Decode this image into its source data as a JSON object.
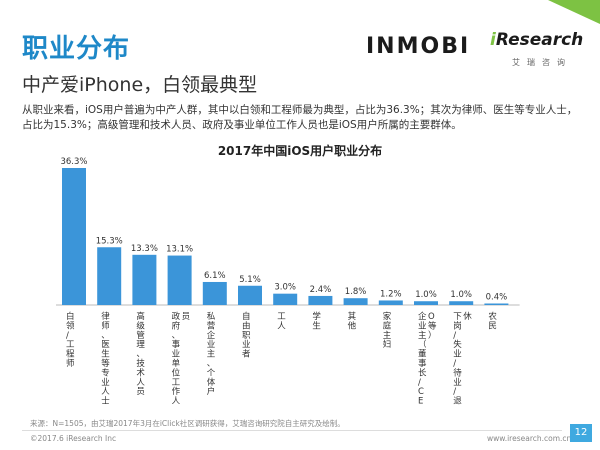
{
  "header": {
    "title": "职业分布",
    "subtitle": "中产爱iPhone，白领最典型",
    "description": "从职业来看，iOS用户普遍为中产人群，其中以白领和工程师最为典型，占比为36.3%；其次为律师、医生等专业人士，占比为15.3%；高级管理和技术人员、政府及事业单位工作人员也是iOS用户所属的主要群体。"
  },
  "brands": {
    "inmobi": "INMOBI",
    "iresearch_i": "i",
    "iresearch_rest": "Research",
    "iresearch_sub": "艾瑞咨询"
  },
  "colors": {
    "accent": "#1e88c8",
    "bar": "#3b95d9",
    "green": "#7dc243",
    "page_badge": "#3fa9e0"
  },
  "chart_data": {
    "type": "bar",
    "title": "2017年中国iOS用户职业分布",
    "categories": [
      "白领/工程师",
      "律师、医生等专业人士",
      "高级管理、技术人员",
      "政府、事业单位工作人员",
      "私营企业主、个体户",
      "自由职业者",
      "工人",
      "学生",
      "其他",
      "家庭主妇",
      "企业主（董事长/CEO等）",
      "下岗/失业/待业/退休",
      "农民"
    ],
    "values": [
      36.3,
      15.3,
      13.3,
      13.1,
      6.1,
      5.1,
      3.0,
      2.4,
      1.8,
      1.2,
      1.0,
      1.0,
      0.4
    ],
    "value_labels": [
      "36.3%",
      "15.3%",
      "13.3%",
      "13.1%",
      "6.1%",
      "5.1%",
      "3.0%",
      "2.4%",
      "1.8%",
      "1.2%",
      "1.0%",
      "1.0%",
      "0.4%"
    ],
    "xlabel": "",
    "ylabel": "",
    "ylim": [
      0,
      36.3
    ],
    "grid": false
  },
  "footer": {
    "source": "来源：N=1505，由艾瑞2017年3月在iClick社区调研获得，艾瑞咨询研究院自主研究及绘制。",
    "copyright": "©2017.6 iResearch Inc",
    "website": "www.iresearch.com.cn",
    "page": "12"
  }
}
